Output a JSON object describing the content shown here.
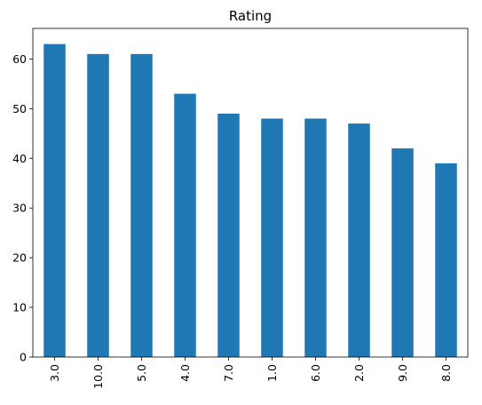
{
  "chart_data": {
    "type": "bar",
    "title": "Rating",
    "xlabel": "",
    "ylabel": "",
    "categories": [
      "3.0",
      "10.0",
      "5.0",
      "4.0",
      "7.0",
      "1.0",
      "6.0",
      "2.0",
      "9.0",
      "8.0"
    ],
    "values": [
      63,
      61,
      61,
      53,
      49,
      48,
      48,
      47,
      42,
      39
    ],
    "ylim": [
      0,
      66.15
    ],
    "yticks": [
      "0",
      "10",
      "20",
      "30",
      "40",
      "50",
      "60"
    ],
    "grid": false,
    "legend": "none",
    "bar_color": "#1f77b4"
  }
}
